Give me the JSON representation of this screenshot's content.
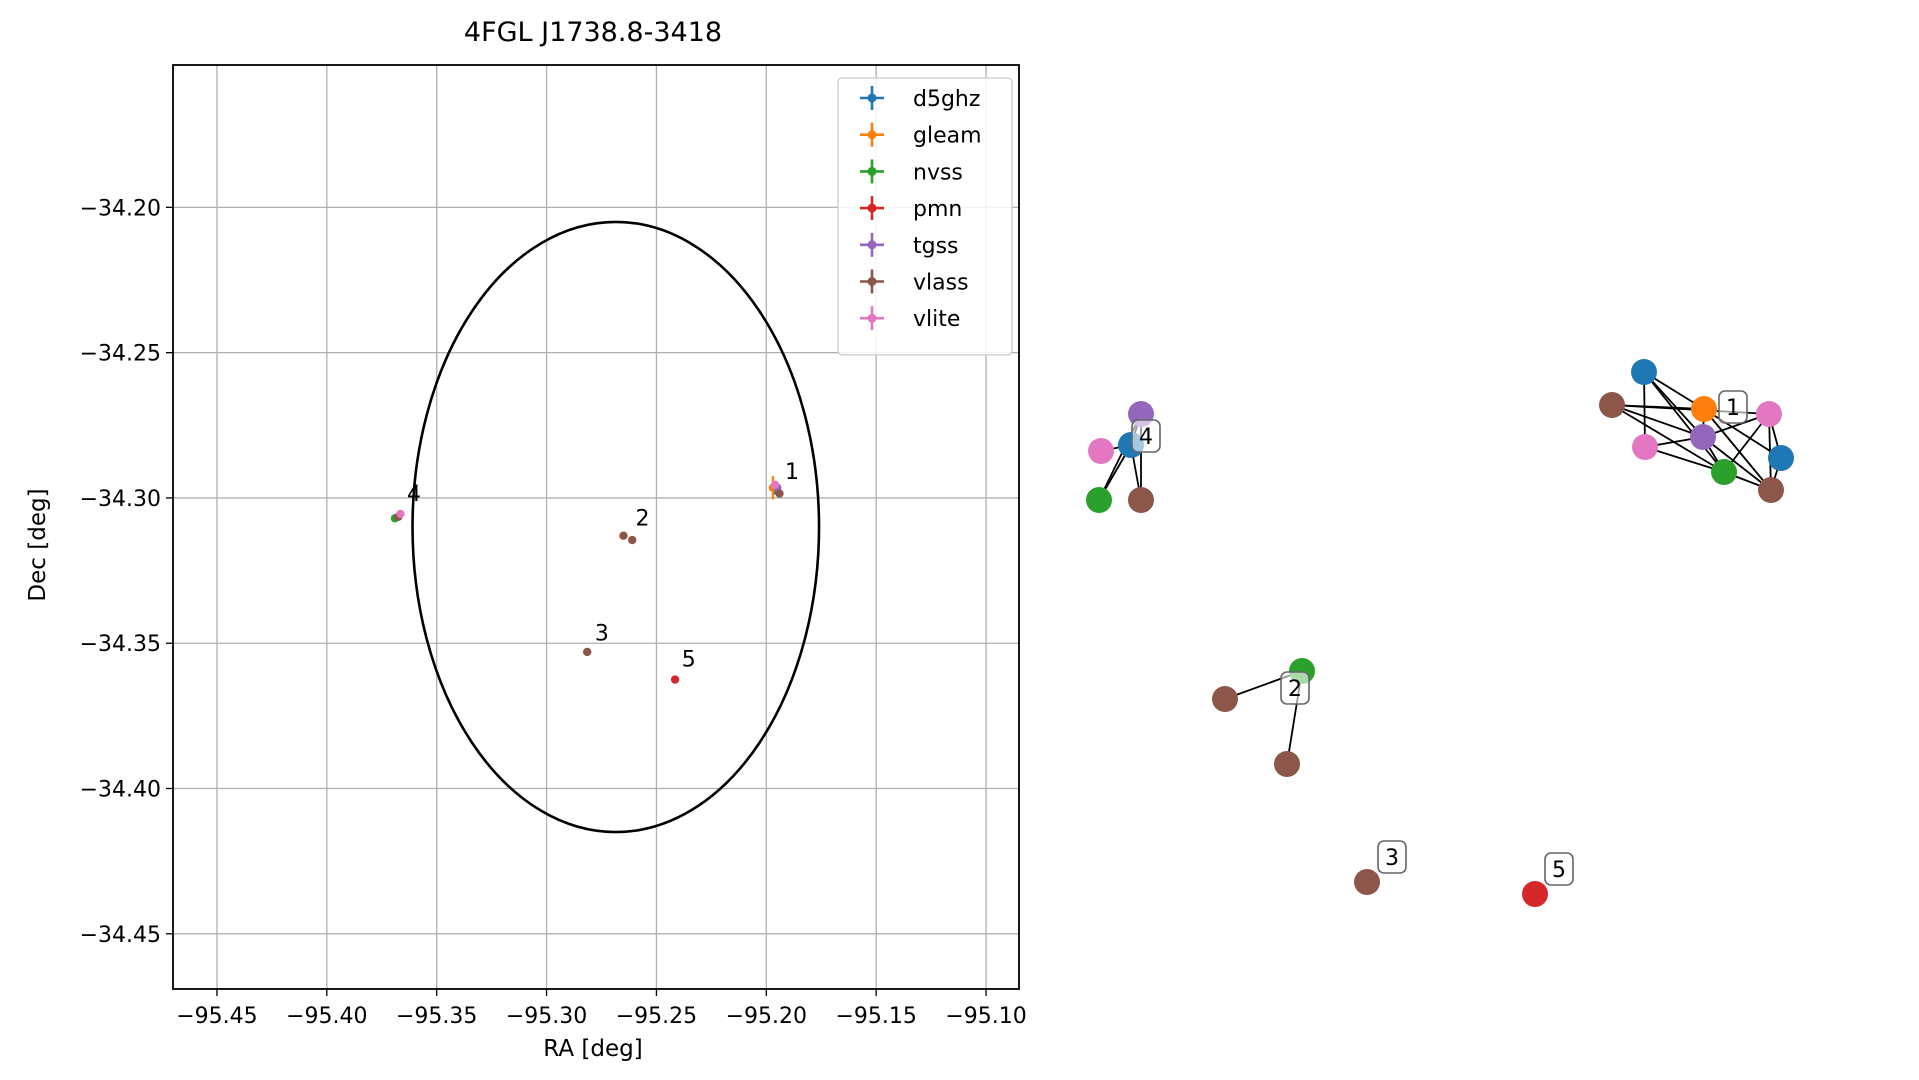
{
  "chart_data": [
    {
      "type": "scatter",
      "title": "4FGL J1738.8-3418",
      "xlabel": "RA [deg]",
      "ylabel": "Dec [deg]",
      "xlim": [
        -95.47,
        -95.085
      ],
      "ylim": [
        -34.469,
        -34.151
      ],
      "xticks": [
        -95.45,
        -95.4,
        -95.35,
        -95.3,
        -95.25,
        -95.2,
        -95.15,
        -95.1
      ],
      "xtick_labels": [
        "−95.45",
        "−95.40",
        "−95.35",
        "−95.30",
        "−95.25",
        "−95.20",
        "−95.15",
        "−95.10"
      ],
      "yticks": [
        -34.2,
        -34.25,
        -34.3,
        -34.35,
        -34.4,
        -34.45
      ],
      "ytick_labels": [
        "−34.20",
        "−34.25",
        "−34.30",
        "−34.35",
        "−34.40",
        "−34.45"
      ],
      "grid": true,
      "legend_position": "top-right",
      "ellipse": {
        "center": [
          -95.2685,
          -34.31
        ],
        "ra_semi_axis": 0.0925,
        "dec_semi_axis": 0.105,
        "color": "#000000"
      },
      "series": [
        {
          "name": "d5ghz",
          "color": "#1f77b4",
          "points": [
            {
              "x": -95.1955,
              "y": -34.2975
            }
          ]
        },
        {
          "name": "gleam",
          "color": "#ff7f0e",
          "points": [
            {
              "x": -95.197,
              "y": -34.2965,
              "xerr": 0.0012,
              "yerr": 0.004
            }
          ]
        },
        {
          "name": "nvss",
          "color": "#2ca02c",
          "points": [
            {
              "x": -95.369,
              "y": -34.307
            }
          ]
        },
        {
          "name": "pmn",
          "color": "#d62728",
          "points": [
            {
              "x": -95.2415,
              "y": -34.3625
            }
          ]
        },
        {
          "name": "tgss",
          "color": "#9467bd",
          "points": [
            {
              "x": -95.195,
              "y": -34.2965
            }
          ]
        },
        {
          "name": "vlass",
          "color": "#8c564b",
          "points": [
            {
              "x": -95.194,
              "y": -34.2985
            },
            {
              "x": -95.3675,
              "y": -34.3065
            },
            {
              "x": -95.265,
              "y": -34.313
            },
            {
              "x": -95.261,
              "y": -34.3145
            },
            {
              "x": -95.2815,
              "y": -34.353
            }
          ]
        },
        {
          "name": "vlite",
          "color": "#e377c2",
          "points": [
            {
              "x": -95.196,
              "y": -34.2955
            },
            {
              "x": -95.3665,
              "y": -34.3055
            }
          ]
        }
      ],
      "annotations": [
        {
          "text": "1",
          "x": -95.1915,
          "y": -34.2935
        },
        {
          "text": "2",
          "x": -95.2595,
          "y": -34.3095
        },
        {
          "text": "3",
          "x": -95.278,
          "y": -34.349
        },
        {
          "text": "4",
          "x": -95.3635,
          "y": -34.301
        },
        {
          "text": "5",
          "x": -95.2385,
          "y": -34.358
        }
      ]
    },
    {
      "type": "network",
      "clusters": [
        {
          "label": "1",
          "nodes": [
            {
              "color": "#1f77b4"
            },
            {
              "color": "#8c564b"
            },
            {
              "color": "#ff7f0e"
            },
            {
              "color": "#e377c2"
            },
            {
              "color": "#9467bd"
            },
            {
              "color": "#e377c2"
            },
            {
              "color": "#1f77b4"
            },
            {
              "color": "#2ca02c"
            },
            {
              "color": "#8c564b"
            }
          ]
        },
        {
          "label": "4",
          "nodes": [
            {
              "color": "#9467bd"
            },
            {
              "color": "#1f77b4"
            },
            {
              "color": "#e377c2"
            },
            {
              "color": "#2ca02c"
            },
            {
              "color": "#8c564b"
            }
          ]
        },
        {
          "label": "2",
          "nodes": [
            {
              "color": "#2ca02c"
            },
            {
              "color": "#8c564b"
            },
            {
              "color": "#8c564b"
            }
          ]
        },
        {
          "label": "3",
          "nodes": [
            {
              "color": "#8c564b"
            }
          ]
        },
        {
          "label": "5",
          "nodes": [
            {
              "color": "#d62728"
            }
          ]
        }
      ]
    }
  ]
}
